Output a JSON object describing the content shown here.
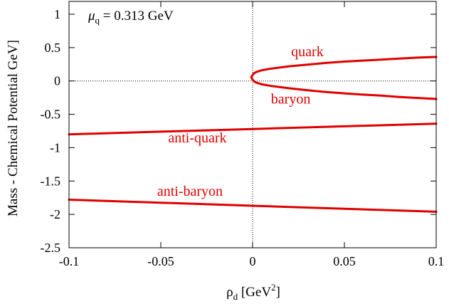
{
  "chart_data": {
    "type": "line",
    "title": "",
    "annotation": {
      "mu": "μ",
      "sub": "q",
      "rest": " = 0.313 GeV"
    },
    "xlabel": {
      "main": "ρ",
      "sub": "d",
      "unit": " [GeV",
      "sup": "2",
      "close": "]"
    },
    "ylabel": "Mass - Chemical Potential GeV]",
    "xlim": [
      -0.1,
      0.1
    ],
    "ylim": [
      -2.5,
      1.2
    ],
    "x_ticks": [
      -0.1,
      -0.05,
      0,
      0.05,
      0.1
    ],
    "x_tick_labels": [
      "-0.1",
      "-0.05",
      "0",
      "0.05",
      "0.1"
    ],
    "y_ticks": [
      1,
      0.5,
      0,
      -0.5,
      -1,
      -1.5,
      -2,
      -2.5
    ],
    "y_tick_labels": [
      "1",
      "0.5",
      "0",
      "-0.5",
      "-1",
      "-1.5",
      "-2",
      "-2.5"
    ],
    "grid": false,
    "reference_lines": {
      "x": 0,
      "y": 0,
      "style": "dotted"
    },
    "line_color": "#e00000",
    "series": [
      {
        "name": "quark",
        "x": [
          -0.0007,
          0.0,
          0.0005,
          0.002,
          0.005,
          0.01,
          0.02,
          0.03,
          0.04,
          0.05,
          0.06,
          0.07,
          0.08,
          0.09,
          0.1
        ],
        "y": [
          0.055,
          0.09,
          0.11,
          0.135,
          0.16,
          0.185,
          0.22,
          0.245,
          0.27,
          0.29,
          0.305,
          0.32,
          0.335,
          0.35,
          0.36
        ]
      },
      {
        "name": "baryon",
        "x": [
          -0.0007,
          0.0,
          0.0005,
          0.002,
          0.005,
          0.01,
          0.02,
          0.03,
          0.04,
          0.05,
          0.06,
          0.07,
          0.08,
          0.09,
          0.1
        ],
        "y": [
          0.055,
          0.02,
          0.0,
          -0.025,
          -0.05,
          -0.075,
          -0.11,
          -0.14,
          -0.165,
          -0.185,
          -0.205,
          -0.22,
          -0.24,
          -0.255,
          -0.27
        ]
      },
      {
        "name": "anti-quark",
        "x": [
          -0.1,
          -0.05,
          0,
          0.05,
          0.1
        ],
        "y": [
          -0.8,
          -0.76,
          -0.72,
          -0.68,
          -0.64
        ]
      },
      {
        "name": "anti-baryon",
        "x": [
          -0.1,
          -0.05,
          0,
          0.05,
          0.1
        ],
        "y": [
          -1.78,
          -1.825,
          -1.87,
          -1.915,
          -1.96
        ]
      }
    ],
    "series_label_positions": {
      "quark": [
        0.021,
        0.37
      ],
      "baryon": [
        0.01,
        -0.34
      ],
      "anti-quark": [
        -0.046,
        -0.92
      ],
      "anti-baryon": [
        -0.052,
        -1.72
      ]
    }
  }
}
